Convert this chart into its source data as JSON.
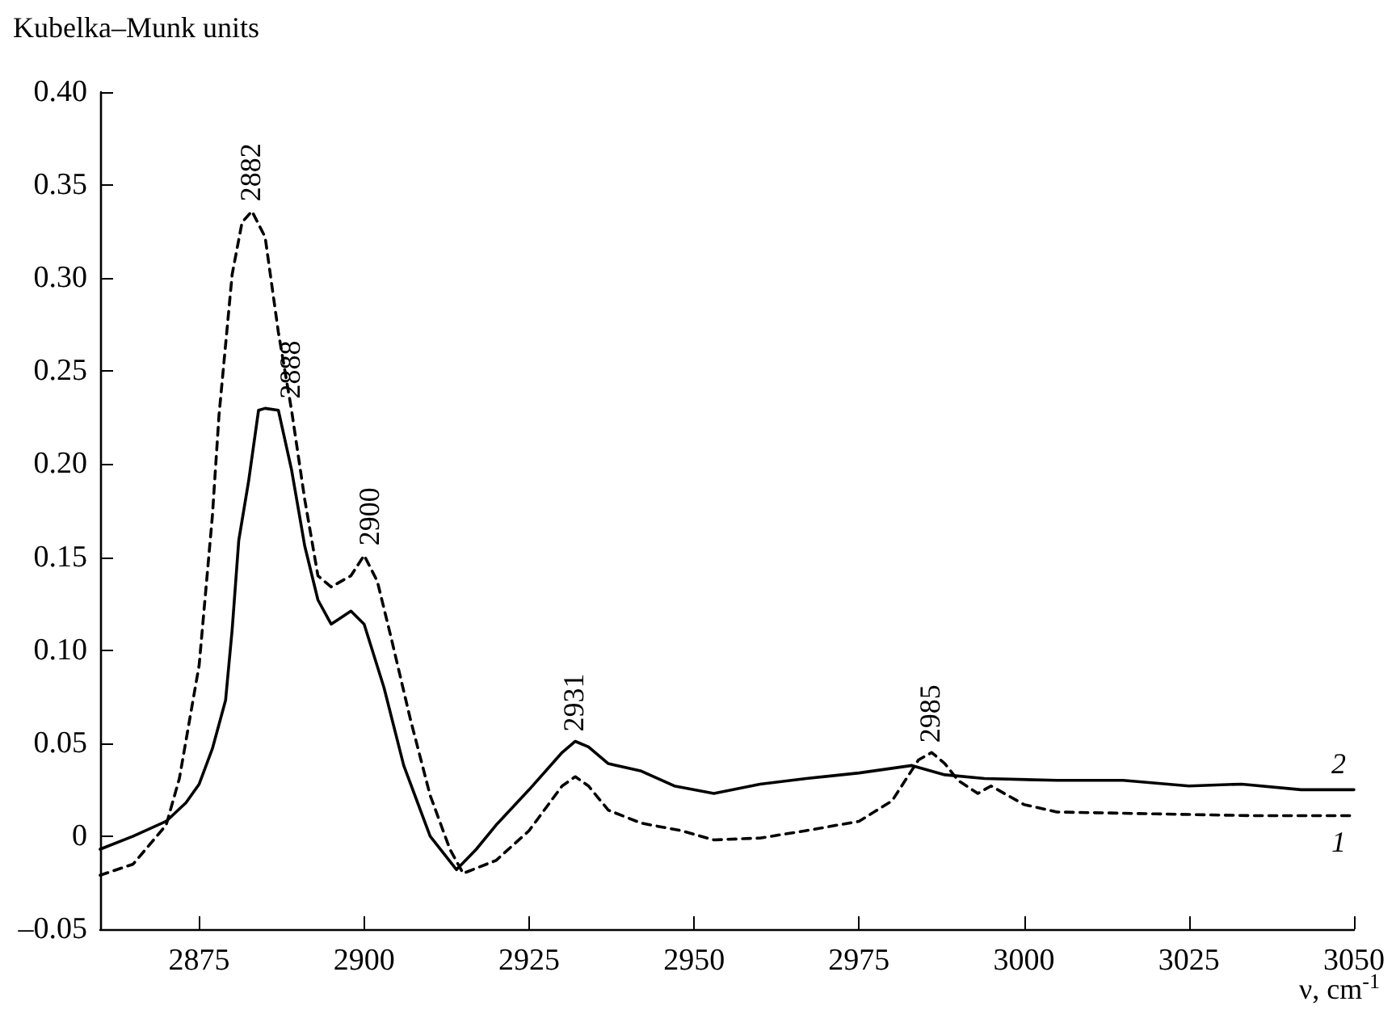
{
  "chart_data": {
    "type": "line",
    "ylabel": "Kubelka–Munk units",
    "xlabel": "ν, cm$^{-1}$",
    "xlim": [
      2860,
      3050
    ],
    "xticks": [
      2875,
      2900,
      2925,
      2950,
      2975,
      3000,
      3025,
      3050
    ],
    "ylim": [
      -0.05,
      0.4
    ],
    "yticks": [
      {
        "value": -0.05,
        "label": "–0.05"
      },
      0,
      {
        "value": 0.05,
        "label": "0.05"
      },
      {
        "value": 0.1,
        "label": "0.10"
      },
      {
        "value": 0.15,
        "label": "0.15"
      },
      {
        "value": 0.2,
        "label": "0.20"
      },
      {
        "value": 0.25,
        "label": "0.25"
      },
      {
        "value": 0.3,
        "label": "0.30"
      },
      {
        "value": 0.35,
        "label": "0.35"
      },
      {
        "value": 0.4,
        "label": "0.40"
      }
    ],
    "grid": false,
    "legend": false,
    "marker": "none",
    "series": [
      {
        "name": "1",
        "color": "#000000",
        "line_style": "dashed",
        "x": [
          2860,
          2865,
          2870,
          2872,
          2875,
          2877,
          2878,
          2880,
          2881.5,
          2883,
          2885,
          2887,
          2889,
          2891,
          2893,
          2895,
          2898,
          2900,
          2902,
          2904,
          2907,
          2910,
          2913,
          2915,
          2920,
          2925,
          2930,
          2932,
          2934,
          2937,
          2942,
          2948,
          2953,
          2960,
          2967,
          2975,
          2980,
          2984,
          2986,
          2988,
          2990,
          2993,
          2995,
          3000,
          3005,
          3020,
          3035,
          3050
        ],
        "values": [
          -0.021,
          -0.015,
          0.006,
          0.031,
          0.092,
          0.172,
          0.226,
          0.302,
          0.33,
          0.336,
          0.322,
          0.271,
          0.229,
          0.181,
          0.14,
          0.134,
          0.14,
          0.151,
          0.137,
          0.108,
          0.063,
          0.022,
          -0.007,
          -0.02,
          -0.013,
          0.003,
          0.027,
          0.032,
          0.027,
          0.014,
          0.007,
          0.003,
          -0.002,
          -0.001,
          0.003,
          0.008,
          0.019,
          0.041,
          0.045,
          0.039,
          0.03,
          0.023,
          0.027,
          0.017,
          0.013,
          0.012,
          0.011,
          0.011
        ]
      },
      {
        "name": "2",
        "color": "#000000",
        "line_style": "solid",
        "x": [
          2860,
          2865,
          2870,
          2873,
          2875,
          2877,
          2879,
          2880,
          2881,
          2882.5,
          2884,
          2885,
          2887,
          2889,
          2891,
          2893,
          2895,
          2898,
          2900,
          2903,
          2906,
          2910,
          2914,
          2917,
          2920,
          2925,
          2930,
          2932,
          2934,
          2937,
          2942,
          2947,
          2953,
          2960,
          2967,
          2975,
          2983,
          2988,
          2994,
          3005,
          3015,
          3025,
          3033,
          3042,
          3050
        ],
        "values": [
          -0.007,
          0,
          0.008,
          0.018,
          0.028,
          0.047,
          0.073,
          0.111,
          0.159,
          0.191,
          0.229,
          0.23,
          0.229,
          0.197,
          0.156,
          0.127,
          0.114,
          0.121,
          0.114,
          0.08,
          0.038,
          0,
          -0.018,
          -0.007,
          0.006,
          0.025,
          0.045,
          0.051,
          0.048,
          0.039,
          0.035,
          0.027,
          0.023,
          0.028,
          0.031,
          0.034,
          0.038,
          0.033,
          0.031,
          0.03,
          0.03,
          0.027,
          0.028,
          0.025,
          0.025
        ]
      }
    ],
    "annotations": [
      {
        "text": "2882",
        "x": 2882,
        "y": 0.336
      },
      {
        "text": "2888",
        "x": 2888,
        "y": 0.23
      },
      {
        "text": "2900",
        "x": 2900,
        "y": 0.151
      },
      {
        "text": "2931",
        "x": 2931,
        "y": 0.051
      },
      {
        "text": "2985",
        "x": 2985,
        "y": 0.045
      }
    ]
  }
}
